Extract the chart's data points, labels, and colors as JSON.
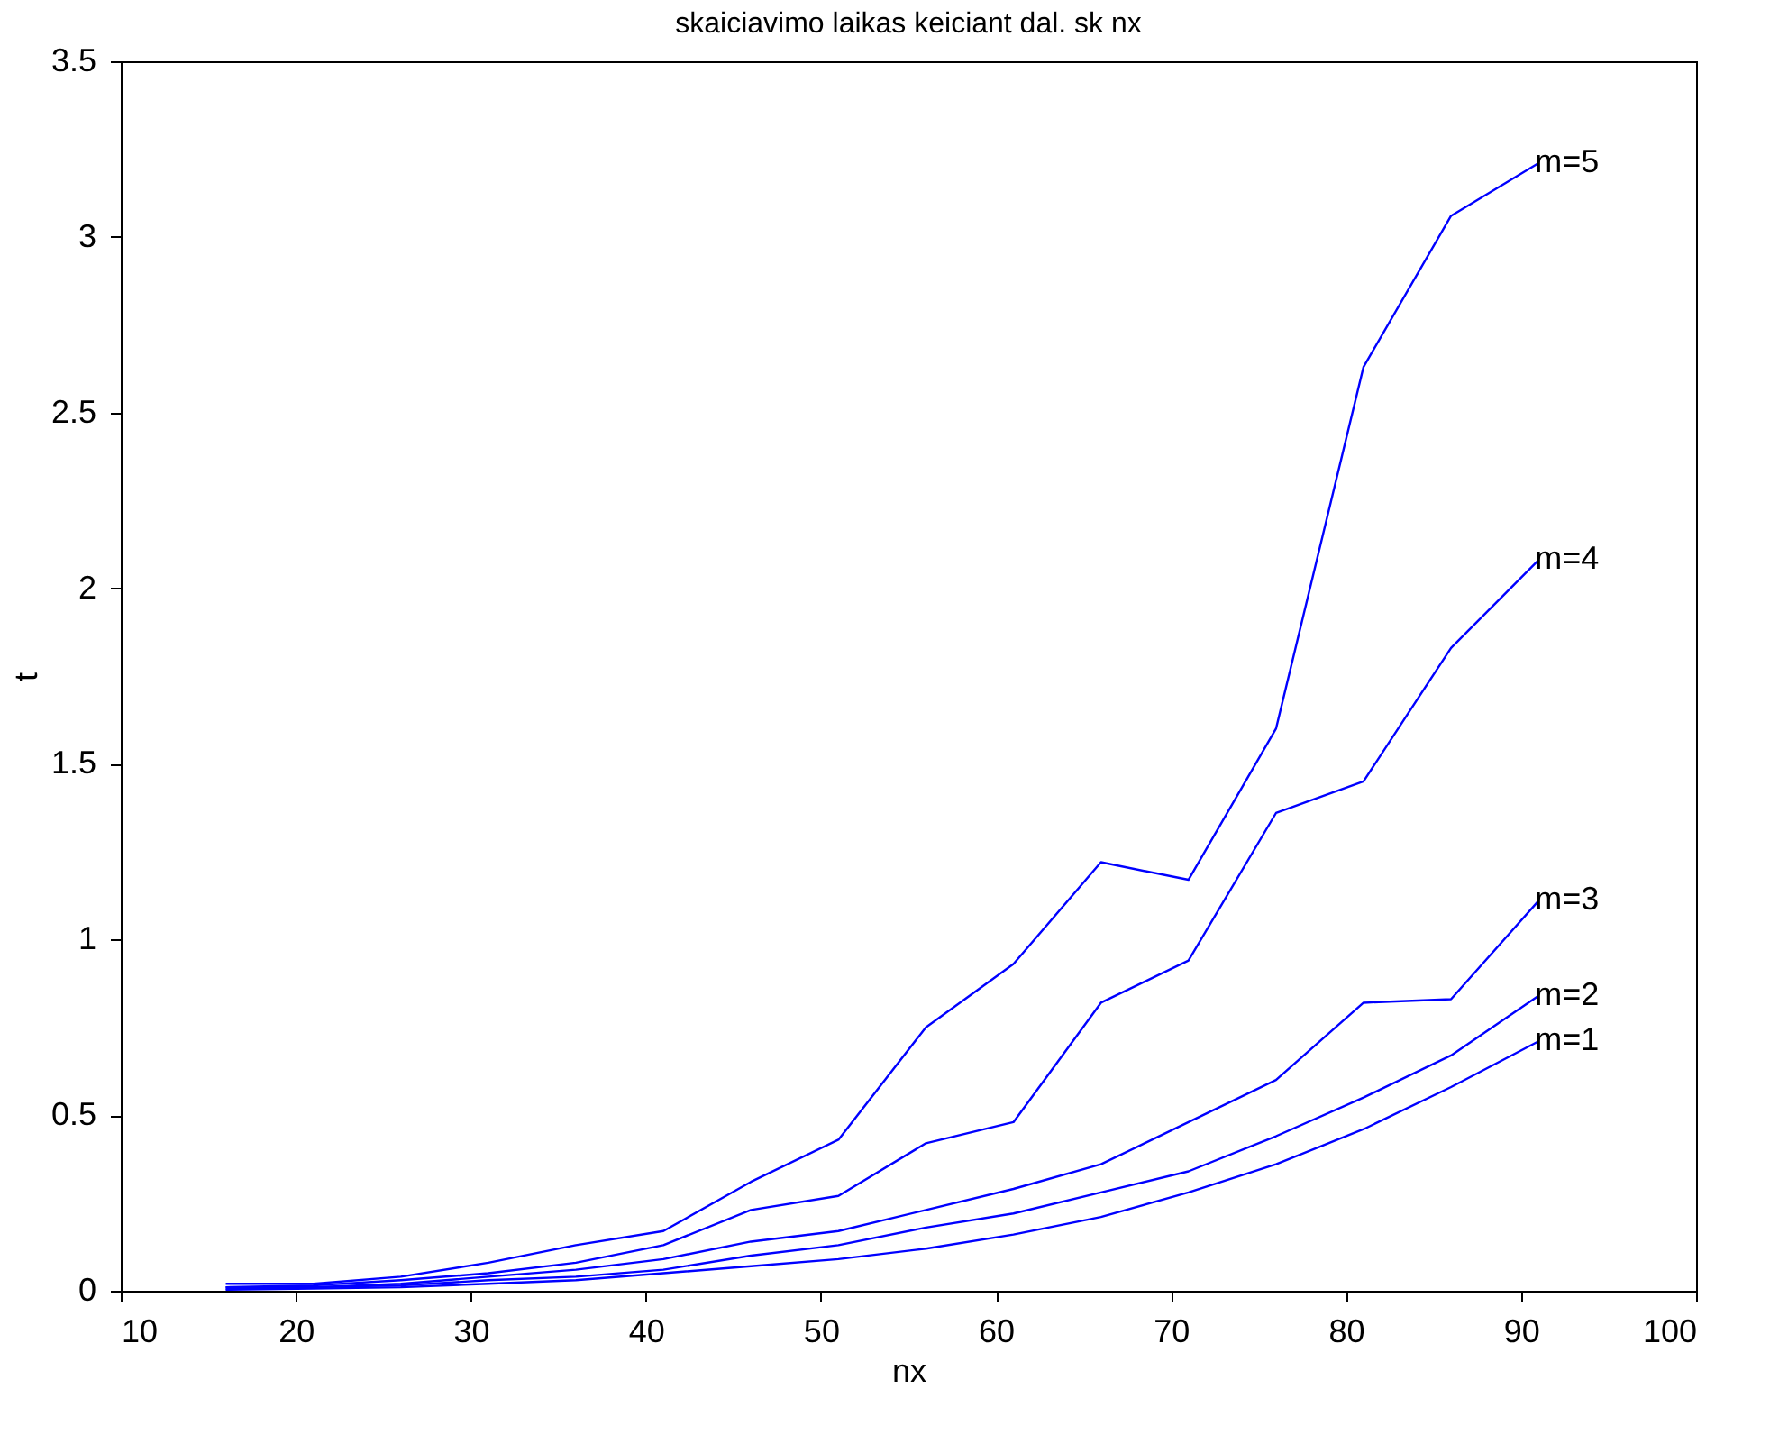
{
  "chart_data": {
    "type": "line",
    "title": "skaiciavimo laikas keiciant dal. sk nx",
    "xlabel": "nx",
    "ylabel": "t",
    "x": [
      16,
      21,
      26,
      31,
      36,
      41,
      46,
      51,
      56,
      61,
      66,
      71,
      76,
      81,
      86,
      91
    ],
    "xlim": [
      10,
      100
    ],
    "xticks": [
      10,
      20,
      30,
      40,
      50,
      60,
      70,
      80,
      90,
      100
    ],
    "ylim": [
      0,
      3.5
    ],
    "yticks": [
      0,
      0.5,
      1,
      1.5,
      2,
      2.5,
      3,
      3.5
    ],
    "grid": false,
    "marker": "none",
    "line_style": "solid",
    "series": [
      {
        "name": "m=1",
        "color": "#0000ff",
        "values": [
          0.003,
          0.006,
          0.01,
          0.02,
          0.03,
          0.05,
          0.07,
          0.09,
          0.12,
          0.16,
          0.21,
          0.28,
          0.36,
          0.46,
          0.58,
          0.71
        ]
      },
      {
        "name": "m=2",
        "color": "#0000ff",
        "values": [
          0.005,
          0.01,
          0.015,
          0.03,
          0.04,
          0.06,
          0.1,
          0.13,
          0.18,
          0.22,
          0.28,
          0.34,
          0.44,
          0.55,
          0.67,
          0.84
        ]
      },
      {
        "name": "m=3",
        "color": "#0000ff",
        "values": [
          0.01,
          0.01,
          0.02,
          0.04,
          0.06,
          0.09,
          0.14,
          0.17,
          0.23,
          0.29,
          0.36,
          0.48,
          0.6,
          0.82,
          0.83,
          1.11
        ]
      },
      {
        "name": "m=4",
        "color": "#0000ff",
        "values": [
          0.01,
          0.015,
          0.03,
          0.05,
          0.08,
          0.13,
          0.23,
          0.27,
          0.42,
          0.48,
          0.82,
          0.94,
          1.36,
          1.45,
          1.83,
          2.08
        ]
      },
      {
        "name": "m=5",
        "color": "#0000ff",
        "values": [
          0.02,
          0.02,
          0.04,
          0.08,
          0.13,
          0.17,
          0.31,
          0.43,
          0.75,
          0.93,
          1.22,
          1.17,
          1.6,
          2.63,
          3.06,
          3.21
        ]
      }
    ]
  }
}
